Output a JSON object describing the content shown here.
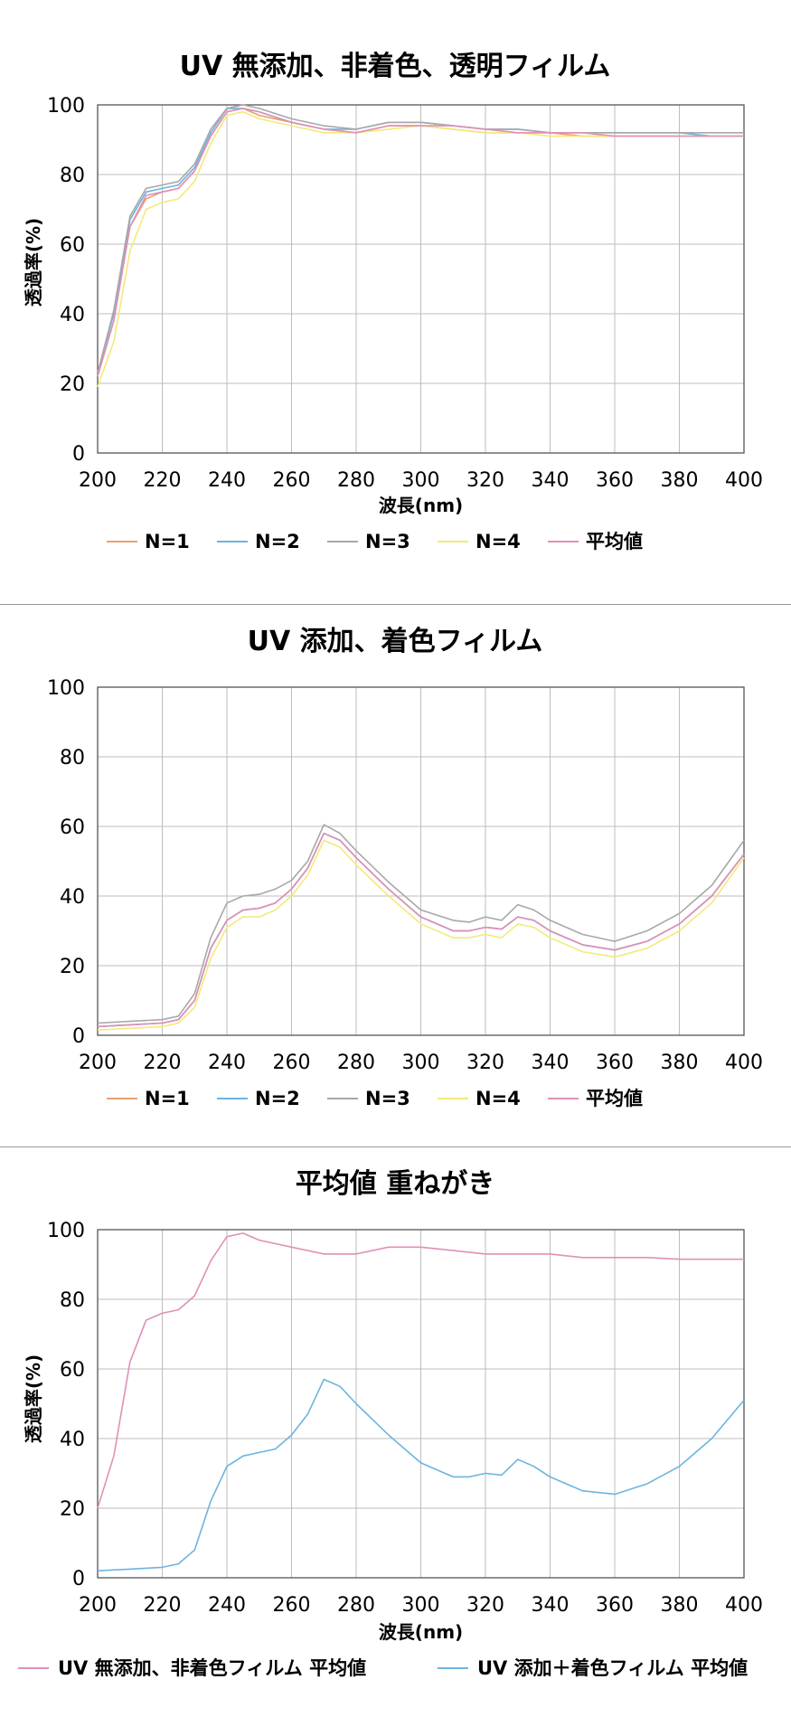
{
  "chart_data": [
    {
      "type": "line",
      "title": "UV 無添加、非着色、透明フィルム",
      "xlabel": "波長(nm)",
      "ylabel": "透過率(%)",
      "xlim": [
        200,
        400
      ],
      "ylim": [
        0,
        100
      ],
      "xticks": [
        200,
        220,
        240,
        260,
        280,
        300,
        320,
        340,
        360,
        380,
        400
      ],
      "yticks": [
        0,
        20,
        40,
        60,
        80,
        100
      ],
      "grid": true,
      "legend": "bottom",
      "x": [
        200,
        205,
        210,
        215,
        220,
        225,
        230,
        235,
        240,
        245,
        250,
        260,
        270,
        280,
        290,
        300,
        310,
        320,
        330,
        340,
        350,
        360,
        370,
        380,
        390,
        400
      ],
      "series": [
        {
          "name": "N=1",
          "color": "#e8a070",
          "values": [
            22,
            38,
            65,
            73,
            75,
            76,
            81,
            91,
            98,
            99,
            97,
            95,
            93,
            92,
            94,
            94,
            93,
            92,
            92,
            92,
            91,
            91,
            91,
            91,
            91,
            91
          ]
        },
        {
          "name": "N=2",
          "color": "#6cb4e0",
          "values": [
            23,
            40,
            67,
            75,
            76,
            77,
            82,
            92,
            99,
            99,
            98,
            95,
            93,
            93,
            95,
            95,
            94,
            93,
            93,
            92,
            92,
            92,
            92,
            92,
            91,
            91
          ]
        },
        {
          "name": "N=3",
          "color": "#a8a8a8",
          "values": [
            23,
            41,
            68,
            76,
            77,
            78,
            83,
            93,
            99,
            100,
            99,
            96,
            94,
            93,
            95,
            95,
            94,
            93,
            93,
            92,
            92,
            92,
            92,
            92,
            92,
            92
          ]
        },
        {
          "name": "N=4",
          "color": "#f2ea7a",
          "values": [
            19,
            32,
            58,
            70,
            72,
            73,
            78,
            89,
            97,
            98,
            96,
            94,
            92,
            92,
            93,
            94,
            93,
            92,
            92,
            91,
            91,
            91,
            91,
            91,
            91,
            91
          ]
        },
        {
          "name": "平均値",
          "color": "#e090b8",
          "values": [
            22,
            38,
            65,
            74,
            75,
            76,
            81,
            91,
            98,
            99,
            98,
            95,
            93,
            92,
            94,
            94,
            94,
            93,
            92,
            92,
            92,
            91,
            91,
            91,
            91,
            91
          ]
        }
      ]
    },
    {
      "type": "line",
      "title": "UV 添加、着色フィルム",
      "xlabel": "",
      "ylabel": "",
      "xlim": [
        200,
        400
      ],
      "ylim": [
        0,
        100
      ],
      "xticks": [
        200,
        220,
        240,
        260,
        280,
        300,
        320,
        340,
        360,
        380,
        400
      ],
      "yticks": [
        0,
        20,
        40,
        60,
        80,
        100
      ],
      "grid": true,
      "legend": "bottom",
      "x": [
        200,
        210,
        220,
        225,
        230,
        235,
        240,
        245,
        250,
        255,
        260,
        265,
        270,
        275,
        280,
        290,
        300,
        310,
        315,
        320,
        325,
        330,
        335,
        340,
        350,
        360,
        370,
        380,
        390,
        400
      ],
      "series": [
        {
          "name": "N=1",
          "color": "#e8a070",
          "values": [
            2.5,
            3,
            3.5,
            4.5,
            10,
            25,
            33,
            36,
            36.5,
            38,
            42,
            48,
            58,
            56,
            51,
            42,
            34,
            30,
            30,
            31,
            30.5,
            34,
            33,
            30,
            26,
            24.5,
            27,
            32,
            40,
            52
          ]
        },
        {
          "name": "N=2",
          "color": "#6cb4e0",
          "values": [
            2.5,
            3,
            3.5,
            4.5,
            10,
            25,
            33,
            36,
            36.5,
            38,
            42,
            48,
            58,
            56,
            51,
            42,
            34,
            30,
            30,
            31,
            30.5,
            34,
            33,
            30,
            26,
            24.5,
            27,
            32,
            40,
            52
          ]
        },
        {
          "name": "N=3",
          "color": "#a8a8a8",
          "values": [
            3.5,
            4,
            4.5,
            5.5,
            12,
            28,
            38,
            40,
            40.5,
            42,
            44.5,
            50,
            60.5,
            58,
            53,
            44,
            36,
            33,
            32.5,
            34,
            33,
            37.5,
            36,
            33,
            29,
            27,
            30,
            35,
            43,
            56
          ]
        },
        {
          "name": "N=4",
          "color": "#f2ea7a",
          "values": [
            1.5,
            2,
            2.5,
            3.5,
            8,
            22,
            31,
            34,
            34,
            36,
            40,
            46,
            56,
            54,
            49,
            40,
            32,
            28,
            28,
            29,
            28,
            32,
            31,
            28,
            24,
            22.5,
            25,
            30,
            38,
            51
          ]
        },
        {
          "name": "平均値",
          "color": "#e090b8",
          "values": [
            2.5,
            3,
            3.5,
            4.5,
            10,
            25,
            33,
            36,
            36.5,
            38,
            42,
            48,
            58,
            56,
            51,
            42,
            34,
            30,
            30,
            31,
            30.5,
            34,
            33,
            30,
            26,
            24.5,
            27,
            32,
            40,
            52
          ]
        }
      ]
    },
    {
      "type": "line",
      "title": "平均値 重ねがき",
      "xlabel": "波長(nm)",
      "ylabel": "透過率(%)",
      "xlim": [
        200,
        400
      ],
      "ylim": [
        0,
        100
      ],
      "xticks": [
        200,
        220,
        240,
        260,
        280,
        300,
        320,
        340,
        360,
        380,
        400
      ],
      "yticks": [
        0,
        20,
        40,
        60,
        80,
        100
      ],
      "grid": true,
      "legend": "bottom",
      "series": [
        {
          "name": "UV 無添加、非着色フィルム 平均値",
          "color": "#e090b8",
          "x": [
            200,
            205,
            210,
            215,
            220,
            225,
            230,
            235,
            240,
            245,
            250,
            260,
            270,
            280,
            290,
            300,
            310,
            320,
            330,
            340,
            350,
            360,
            370,
            380,
            390,
            400
          ],
          "values": [
            20,
            35,
            62,
            74,
            76,
            77,
            81,
            91,
            98,
            99,
            97,
            95,
            93,
            93,
            95,
            95,
            94,
            93,
            93,
            93,
            92,
            92,
            92,
            91.5,
            91.5,
            91.5
          ]
        },
        {
          "name": "UV 添加＋着色フィルム 平均値",
          "color": "#6cb4e0",
          "x": [
            200,
            210,
            220,
            225,
            230,
            235,
            240,
            245,
            250,
            255,
            260,
            265,
            270,
            275,
            280,
            290,
            300,
            310,
            315,
            320,
            325,
            330,
            335,
            340,
            350,
            360,
            370,
            380,
            390,
            400
          ],
          "values": [
            2,
            2.5,
            3,
            4,
            8,
            22,
            32,
            35,
            36,
            37,
            41,
            47,
            57,
            55,
            50,
            41,
            33,
            29,
            29,
            30,
            29.5,
            34,
            32,
            29,
            25,
            24,
            27,
            32,
            40,
            51
          ]
        }
      ]
    }
  ]
}
